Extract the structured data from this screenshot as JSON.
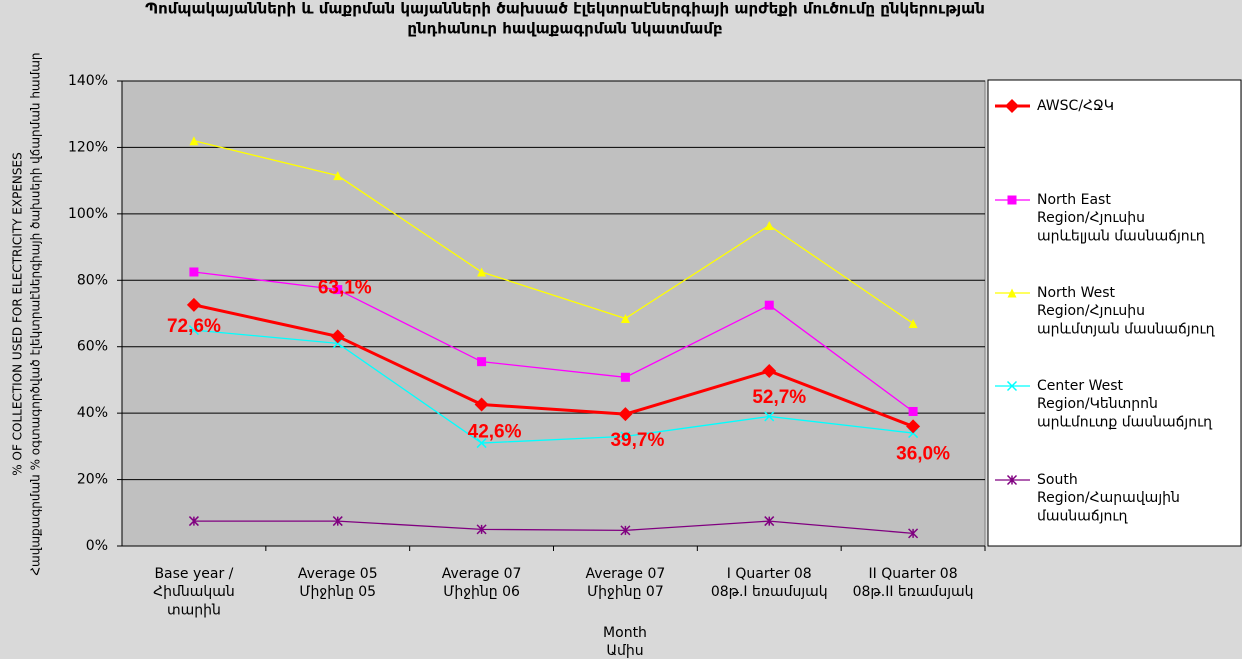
{
  "chart_data": {
    "type": "line",
    "title": [
      "Պոմպակայանների և մաքրման կայանների ծախսած էլեկտրաէներգիայի արժեքի մուծումը ընկերության",
      "ընդհանուր հավաքագրման նկատմամբ"
    ],
    "y_label": [
      "% OF COLLECTION USED FOR ELECTRICITY EXPENSES",
      "Հավաքագրման % օգտագործված էլեկտրաէներգիայի ծախսերի վճարման համար"
    ],
    "x_label": "Month\nԱմիս",
    "categories": [
      "Base year /\nՀիմնական\nտարին",
      "Average 05\nՄիջինը 05",
      "Average 07\nՄիջինը 06",
      "Average 07\nՄիջինը 07",
      "I Quarter 08\n08թ.I եռամսյակ",
      "II Quarter 08\n08թ.II եռամսյակ"
    ],
    "series": [
      {
        "name": "AWSC/ՀՋԿ",
        "color": "#ff0000",
        "marker": "diamond",
        "values": [
          72.6,
          63.1,
          42.6,
          39.7,
          52.7,
          36.0
        ],
        "value_labels": [
          "72,6%",
          "63,1%",
          "42,6%",
          "39,7%",
          "52,7%",
          "36,0%"
        ]
      },
      {
        "name": "North East\nRegion/Հյուսիս\nարևելյան մասնաճյուղ",
        "color": "#ff00ff",
        "marker": "square",
        "values": [
          82.5,
          77.2,
          55.5,
          50.8,
          72.5,
          40.5
        ]
      },
      {
        "name": "North West\nRegion/Հյուսիս\nարևմտյան մասնաճյուղ",
        "color": "#ffff00",
        "marker": "triangle",
        "values": [
          122,
          111.5,
          82.5,
          68.5,
          96.5,
          67
        ]
      },
      {
        "name": "Center West\nRegion/Կենտրոն\nարևմուտք մասնաճյուղ",
        "color": "#00ffff",
        "marker": "x",
        "values": [
          65,
          61,
          31,
          33,
          39,
          34
        ]
      },
      {
        "name": "South\nRegion/Հարավային\nմասնաճյուղ",
        "color": "#800080",
        "marker": "star",
        "values": [
          7.5,
          7.5,
          5,
          4.7,
          7.5,
          3.8
        ]
      }
    ],
    "ylim": [
      0,
      140
    ],
    "yticks": [
      {
        "value": 0,
        "label": "0%"
      },
      {
        "value": 20,
        "label": "20%"
      },
      {
        "value": 40,
        "label": "40%"
      },
      {
        "value": 60,
        "label": "60%"
      },
      {
        "value": 80,
        "label": "80%"
      },
      {
        "value": 100,
        "label": "100%"
      },
      {
        "value": 120,
        "label": "120%"
      },
      {
        "value": 140,
        "label": "140%"
      }
    ],
    "grid": true,
    "legend": "right"
  }
}
